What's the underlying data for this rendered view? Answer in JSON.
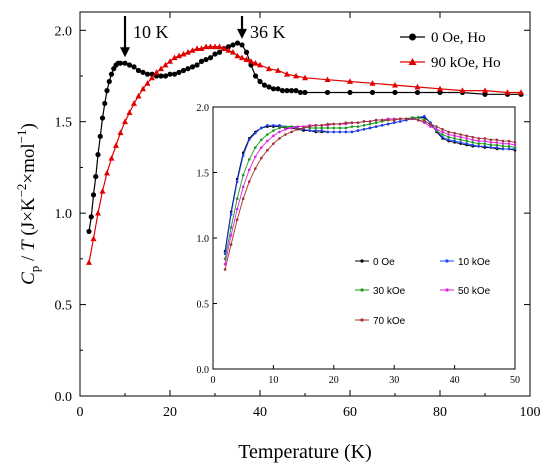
{
  "chart_data": [
    {
      "type": "line",
      "xlabel": "Temperature (K)",
      "ylabel_parts": {
        "c": "C",
        "p": "p",
        "slash": " / ",
        "t": "T",
        "unit_open": " (J×K",
        "exp1": "−2",
        "mid": "×mol",
        "exp2": "−1",
        "unit_close": ")"
      },
      "xlim": [
        0,
        100
      ],
      "ylim": [
        0,
        2.1
      ],
      "xticks": [
        0,
        20,
        40,
        60,
        80,
        100
      ],
      "yticks": [
        0.0,
        0.5,
        1.0,
        1.5,
        2.0
      ],
      "xtick_labels": [
        "0",
        "20",
        "40",
        "60",
        "80",
        "100"
      ],
      "ytick_labels": [
        "0.0",
        "0.5",
        "1.0",
        "1.5",
        "2.0"
      ],
      "annotations": [
        {
          "text": "10 K",
          "x": 10,
          "y": 1.82
        },
        {
          "text": "36 K",
          "x": 36,
          "y": 1.92
        }
      ],
      "legend_position": "top-right",
      "series": [
        {
          "name": "0 Oe, Ho",
          "color": "#000000",
          "marker": "circle",
          "x": [
            2,
            2.5,
            3,
            3.5,
            4,
            4.5,
            5,
            5.5,
            6,
            6.5,
            7,
            7.5,
            8,
            8.5,
            9,
            10,
            11,
            12,
            13,
            14,
            15,
            16,
            17,
            18,
            19,
            20,
            21,
            22,
            23,
            24,
            25,
            26,
            27,
            28,
            29,
            30,
            31,
            32,
            33,
            34,
            35,
            36,
            37,
            38,
            39,
            40,
            41,
            42,
            43,
            44,
            45,
            46,
            47,
            48,
            49,
            50,
            55,
            60,
            65,
            70,
            75,
            80,
            85,
            90,
            95,
            98
          ],
          "y": [
            0.9,
            0.98,
            1.1,
            1.2,
            1.32,
            1.42,
            1.52,
            1.6,
            1.67,
            1.72,
            1.76,
            1.79,
            1.81,
            1.82,
            1.82,
            1.82,
            1.81,
            1.8,
            1.78,
            1.77,
            1.76,
            1.76,
            1.75,
            1.75,
            1.75,
            1.76,
            1.76,
            1.77,
            1.78,
            1.79,
            1.8,
            1.81,
            1.83,
            1.84,
            1.85,
            1.87,
            1.88,
            1.9,
            1.91,
            1.92,
            1.93,
            1.92,
            1.88,
            1.81,
            1.75,
            1.72,
            1.7,
            1.69,
            1.68,
            1.68,
            1.67,
            1.67,
            1.67,
            1.67,
            1.66,
            1.66,
            1.66,
            1.66,
            1.66,
            1.66,
            1.66,
            1.66,
            1.66,
            1.65,
            1.65,
            1.65
          ]
        },
        {
          "name": "90 kOe, Ho",
          "color": "#e00000",
          "marker": "triangle",
          "x": [
            2,
            3,
            4,
            5,
            6,
            7,
            8,
            9,
            10,
            11,
            12,
            13,
            14,
            15,
            16,
            17,
            18,
            19,
            20,
            21,
            22,
            23,
            24,
            25,
            26,
            27,
            28,
            29,
            30,
            31,
            32,
            33,
            34,
            35,
            36,
            37,
            38,
            39,
            40,
            42,
            44,
            46,
            48,
            50,
            55,
            60,
            65,
            70,
            75,
            80,
            85,
            90,
            95,
            98
          ],
          "y": [
            0.73,
            0.86,
            1.0,
            1.12,
            1.22,
            1.3,
            1.37,
            1.44,
            1.5,
            1.55,
            1.6,
            1.64,
            1.68,
            1.71,
            1.74,
            1.77,
            1.79,
            1.81,
            1.83,
            1.85,
            1.86,
            1.87,
            1.88,
            1.89,
            1.9,
            1.9,
            1.91,
            1.91,
            1.91,
            1.91,
            1.9,
            1.89,
            1.88,
            1.86,
            1.85,
            1.84,
            1.83,
            1.82,
            1.81,
            1.79,
            1.78,
            1.76,
            1.75,
            1.74,
            1.73,
            1.72,
            1.71,
            1.7,
            1.69,
            1.68,
            1.67,
            1.67,
            1.66,
            1.66
          ]
        }
      ]
    },
    {
      "type": "line",
      "xlim": [
        0,
        50
      ],
      "ylim": [
        0,
        2.0
      ],
      "xticks": [
        0,
        10,
        20,
        30,
        40,
        50
      ],
      "yticks": [
        0.0,
        0.5,
        1.0,
        1.5,
        2.0
      ],
      "xtick_labels": [
        "0",
        "10",
        "20",
        "30",
        "40",
        "50"
      ],
      "ytick_labels": [
        "0.0",
        "0.5",
        "1.0",
        "1.5",
        "2.0"
      ],
      "legend_position": "lower-center",
      "x": [
        2,
        3,
        4,
        5,
        6,
        7,
        8,
        9,
        10,
        11,
        12,
        13,
        14,
        15,
        16,
        17,
        18,
        19,
        20,
        21,
        22,
        23,
        24,
        25,
        26,
        27,
        28,
        29,
        30,
        31,
        32,
        33,
        34,
        35,
        36,
        37,
        38,
        39,
        40,
        41,
        42,
        43,
        44,
        45,
        46,
        47,
        48,
        49,
        50
      ],
      "series": [
        {
          "name": "0 Oe",
          "color": "#000000",
          "y": [
            0.9,
            1.2,
            1.45,
            1.65,
            1.76,
            1.81,
            1.84,
            1.85,
            1.85,
            1.85,
            1.84,
            1.84,
            1.83,
            1.82,
            1.82,
            1.81,
            1.81,
            1.81,
            1.81,
            1.81,
            1.81,
            1.81,
            1.82,
            1.83,
            1.84,
            1.85,
            1.86,
            1.87,
            1.88,
            1.89,
            1.9,
            1.91,
            1.92,
            1.92,
            1.88,
            1.81,
            1.76,
            1.74,
            1.73,
            1.72,
            1.71,
            1.7,
            1.7,
            1.69,
            1.69,
            1.68,
            1.68,
            1.68,
            1.67
          ]
        },
        {
          "name": "10 kOe",
          "color": "#1f3fff",
          "y": [
            0.88,
            1.18,
            1.43,
            1.63,
            1.75,
            1.8,
            1.84,
            1.86,
            1.86,
            1.86,
            1.85,
            1.85,
            1.84,
            1.83,
            1.82,
            1.82,
            1.82,
            1.81,
            1.81,
            1.81,
            1.81,
            1.81,
            1.82,
            1.83,
            1.84,
            1.85,
            1.86,
            1.87,
            1.88,
            1.89,
            1.9,
            1.91,
            1.92,
            1.93,
            1.88,
            1.82,
            1.77,
            1.75,
            1.74,
            1.73,
            1.72,
            1.71,
            1.7,
            1.7,
            1.69,
            1.69,
            1.68,
            1.68,
            1.68
          ]
        },
        {
          "name": "30 kOe",
          "color": "#1a9a1a",
          "y": [
            0.84,
            1.08,
            1.3,
            1.48,
            1.6,
            1.69,
            1.75,
            1.79,
            1.82,
            1.84,
            1.85,
            1.85,
            1.85,
            1.85,
            1.84,
            1.84,
            1.84,
            1.84,
            1.84,
            1.84,
            1.84,
            1.85,
            1.85,
            1.86,
            1.87,
            1.88,
            1.89,
            1.9,
            1.9,
            1.91,
            1.91,
            1.92,
            1.92,
            1.9,
            1.86,
            1.82,
            1.79,
            1.77,
            1.76,
            1.75,
            1.74,
            1.73,
            1.72,
            1.72,
            1.71,
            1.71,
            1.7,
            1.7,
            1.69
          ]
        },
        {
          "name": "50 kOe",
          "color": "#e020e0",
          "y": [
            0.8,
            1.02,
            1.22,
            1.39,
            1.52,
            1.62,
            1.69,
            1.74,
            1.78,
            1.81,
            1.83,
            1.84,
            1.85,
            1.85,
            1.86,
            1.86,
            1.86,
            1.86,
            1.87,
            1.87,
            1.87,
            1.88,
            1.88,
            1.89,
            1.89,
            1.9,
            1.9,
            1.91,
            1.91,
            1.91,
            1.91,
            1.91,
            1.9,
            1.88,
            1.85,
            1.83,
            1.81,
            1.79,
            1.78,
            1.77,
            1.76,
            1.75,
            1.74,
            1.74,
            1.73,
            1.73,
            1.72,
            1.72,
            1.71
          ]
        },
        {
          "name": "70 kOe",
          "color": "#a03030",
          "y": [
            0.76,
            0.95,
            1.14,
            1.3,
            1.43,
            1.53,
            1.61,
            1.67,
            1.72,
            1.76,
            1.79,
            1.81,
            1.83,
            1.84,
            1.85,
            1.86,
            1.86,
            1.87,
            1.87,
            1.87,
            1.88,
            1.88,
            1.88,
            1.89,
            1.89,
            1.9,
            1.9,
            1.9,
            1.9,
            1.91,
            1.91,
            1.91,
            1.9,
            1.89,
            1.87,
            1.85,
            1.83,
            1.81,
            1.8,
            1.79,
            1.78,
            1.77,
            1.76,
            1.76,
            1.75,
            1.75,
            1.74,
            1.74,
            1.73
          ]
        }
      ]
    }
  ]
}
